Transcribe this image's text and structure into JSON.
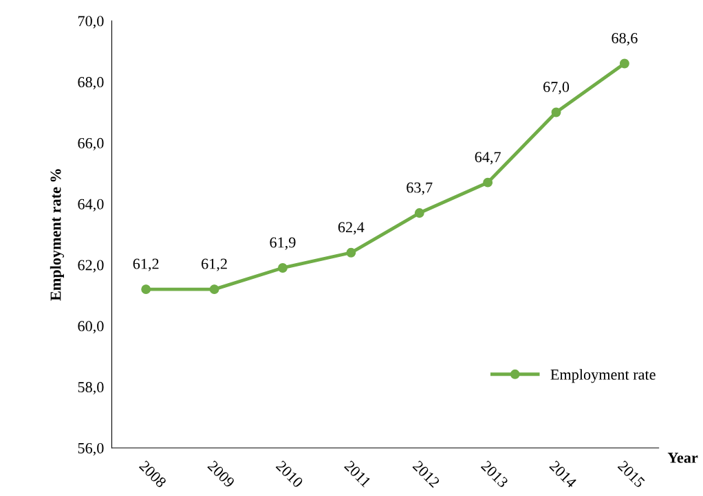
{
  "chart_data": {
    "type": "line",
    "xlabel": "Year",
    "ylabel": "Employment rate %",
    "categories": [
      "2008",
      "2009",
      "2010",
      "2011",
      "2012",
      "2013",
      "2014",
      "2015"
    ],
    "series": [
      {
        "name": "Employment rate",
        "color": "#70ad47",
        "values": [
          61.2,
          61.2,
          61.9,
          62.4,
          63.7,
          64.7,
          67.0,
          68.6
        ],
        "value_labels": [
          "61,2",
          "61,2",
          "61,9",
          "62,4",
          "63,7",
          "64,7",
          "67,0",
          "68,6"
        ]
      }
    ],
    "ylim": [
      56,
      70
    ],
    "yticks": [
      {
        "value": 56,
        "label": "56,0"
      },
      {
        "value": 58,
        "label": "58,0"
      },
      {
        "value": 60,
        "label": "60,0"
      },
      {
        "value": 62,
        "label": "62,0"
      },
      {
        "value": 64,
        "label": "64,0"
      },
      {
        "value": 66,
        "label": "66,0"
      },
      {
        "value": 68,
        "label": "68,0"
      },
      {
        "value": 70,
        "label": "70,0"
      }
    ],
    "grid": false,
    "legend": "bottom right",
    "marker": "circle",
    "line_style": "solid"
  }
}
